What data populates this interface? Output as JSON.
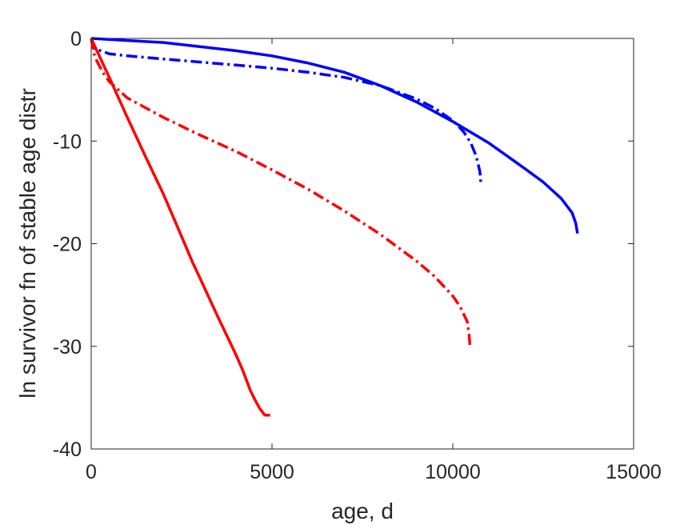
{
  "chart_data": {
    "type": "line",
    "title": "",
    "xlabel": "age, d",
    "ylabel": "ln survivor fn of stable age distr",
    "xlim": [
      0,
      15000
    ],
    "ylim": [
      -40,
      0
    ],
    "xticks": [
      0,
      5000,
      10000,
      15000
    ],
    "yticks": [
      0,
      -10,
      -20,
      -30,
      -40
    ],
    "xtick_labels": [
      "0",
      "5000",
      "10000",
      "15000"
    ],
    "ytick_labels": [
      "0",
      "-10",
      "-20",
      "-30",
      "-40"
    ],
    "grid": false,
    "legend": "none",
    "series": [
      {
        "color": "#0000ff",
        "dash": "solid",
        "x": [
          0,
          1000,
          2000,
          3000,
          4000,
          5000,
          6000,
          7000,
          8000,
          9000,
          10000,
          11000,
          12000,
          12500,
          13000,
          13300,
          13400,
          13450
        ],
        "y": [
          0,
          -0.2,
          -0.4,
          -0.8,
          -1.2,
          -1.7,
          -2.4,
          -3.3,
          -4.6,
          -6.2,
          -8.1,
          -10.2,
          -12.7,
          -14.0,
          -15.6,
          -17.0,
          -18.0,
          -19.0
        ]
      },
      {
        "color": "#0000ff",
        "dash": "dashdot",
        "x": [
          0,
          100,
          500,
          1000,
          2000,
          3000,
          4000,
          5000,
          6000,
          7000,
          8000,
          9000,
          9500,
          10000,
          10300,
          10500,
          10650,
          10750,
          10780
        ],
        "y": [
          0,
          -1.0,
          -1.5,
          -1.7,
          -2.0,
          -2.3,
          -2.6,
          -2.9,
          -3.3,
          -3.8,
          -4.6,
          -5.9,
          -6.8,
          -8.0,
          -9.1,
          -10.2,
          -11.5,
          -13.0,
          -14.3
        ]
      },
      {
        "color": "#ff0000",
        "dash": "solid",
        "x": [
          0,
          500,
          1000,
          1500,
          2000,
          2500,
          2800,
          3000,
          3500,
          4000,
          4200,
          4400,
          4500,
          4650,
          4800,
          4950
        ],
        "y": [
          0,
          -3.8,
          -7.7,
          -11.5,
          -15.2,
          -19.3,
          -21.8,
          -23.3,
          -27.1,
          -30.8,
          -32.4,
          -34.3,
          -35.0,
          -36.0,
          -36.7,
          -36.7
        ]
      },
      {
        "color": "#ff0000",
        "dash": "dashdot",
        "x": [
          0,
          100,
          300,
          500,
          1000,
          2000,
          3000,
          4000,
          5000,
          6000,
          7000,
          8000,
          9000,
          9500,
          10000,
          10200,
          10400,
          10450,
          10480
        ],
        "y": [
          0,
          -1.8,
          -3.2,
          -4.2,
          -5.8,
          -7.7,
          -9.4,
          -11.0,
          -12.8,
          -14.7,
          -16.8,
          -19.1,
          -21.7,
          -23.2,
          -25.1,
          -26.1,
          -27.6,
          -28.8,
          -30.2
        ]
      }
    ]
  }
}
